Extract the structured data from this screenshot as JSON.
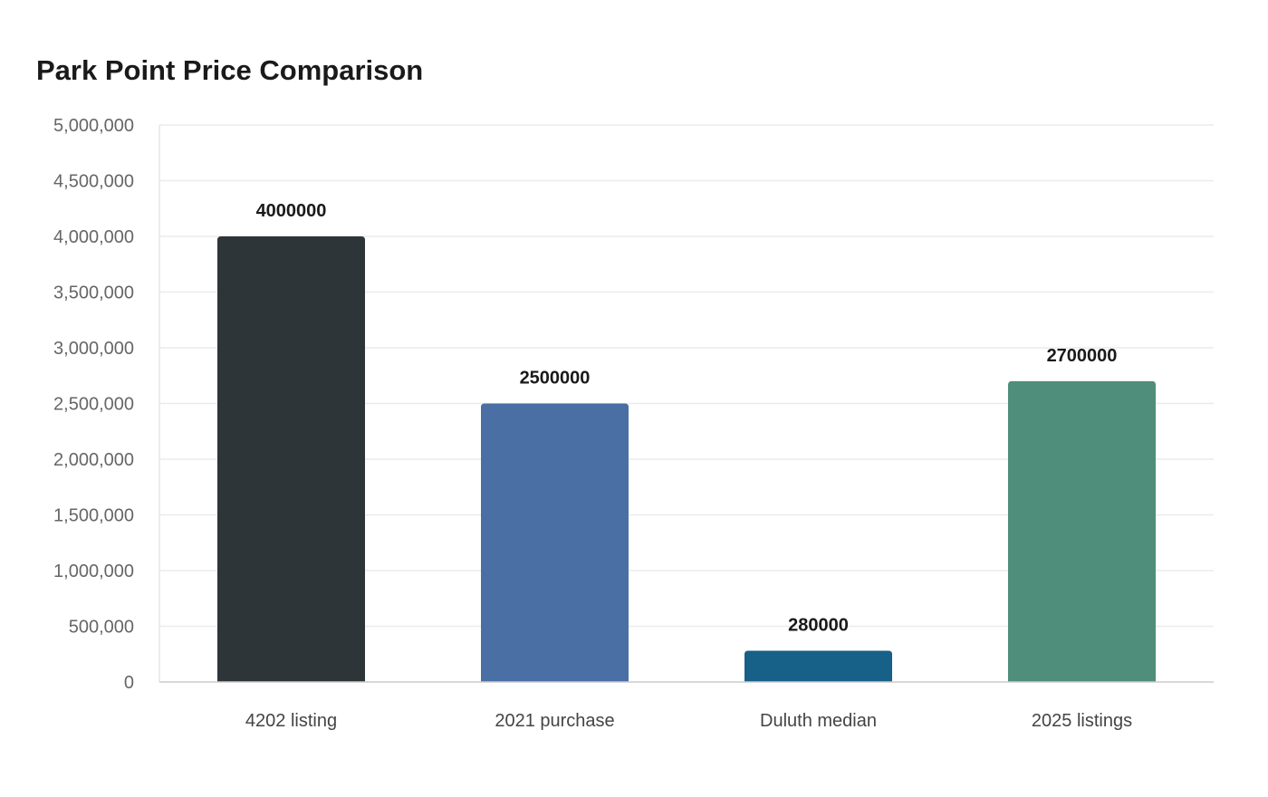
{
  "chart_data": {
    "type": "bar",
    "title": "Park Point Price Comparison",
    "xlabel": "",
    "ylabel": "",
    "categories": [
      "4202 listing",
      "2021 purchase",
      "Duluth median",
      "2025 listings"
    ],
    "values": [
      4000000,
      2500000,
      280000,
      2700000
    ],
    "data_labels": [
      "4000000",
      "2500000",
      "280000",
      "2700000"
    ],
    "colors": [
      "#2d3538",
      "#4a6fa5",
      "#176087",
      "#4e8e7b"
    ],
    "ylim": [
      0,
      5000000
    ],
    "yticks": [
      0,
      500000,
      1000000,
      1500000,
      2000000,
      2500000,
      3000000,
      3500000,
      4000000,
      4500000,
      5000000
    ],
    "ytick_labels": [
      "0",
      "500,000",
      "1,000,000",
      "1,500,000",
      "2,000,000",
      "2,500,000",
      "3,000,000",
      "3,500,000",
      "4,000,000",
      "4,500,000",
      "5,000,000"
    ],
    "grid": true,
    "legend": "none"
  }
}
